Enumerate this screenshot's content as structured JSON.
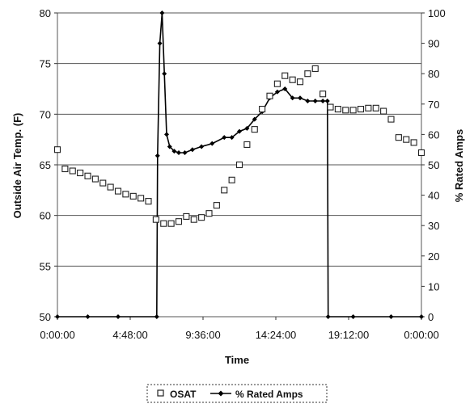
{
  "chart_data": {
    "type": "line",
    "xlabel": "Time",
    "ylabel_left": "Outside Air Temp. (F)",
    "ylabel_right": "% Rated Amps",
    "x_ticks": [
      "0:00:00",
      "4:48:00",
      "9:36:00",
      "14:24:00",
      "19:12:00",
      "0:00:00"
    ],
    "x_range_hours": [
      0,
      24
    ],
    "y_left_range": [
      50,
      80
    ],
    "y_left_ticks": [
      "50",
      "55",
      "60",
      "65",
      "70",
      "75",
      "80"
    ],
    "y_right_range": [
      0,
      100
    ],
    "y_right_ticks": [
      "0",
      "10",
      "20",
      "30",
      "40",
      "50",
      "60",
      "70",
      "80",
      "90",
      "100"
    ],
    "grid": "horizontal",
    "legend_position": "bottom",
    "series": [
      {
        "name": "OSAT",
        "axis": "left",
        "marker": "square-open",
        "color": "#222222",
        "x": [
          0,
          0.5,
          1,
          1.5,
          2,
          2.5,
          3,
          3.5,
          4,
          4.5,
          5,
          5.5,
          6,
          6.5,
          7,
          7.5,
          8,
          8.5,
          9,
          9.5,
          10,
          10.5,
          11,
          11.5,
          12,
          12.5,
          13,
          13.5,
          14,
          14.5,
          15,
          15.5,
          16,
          16.5,
          17,
          17.5,
          18,
          18.5,
          19,
          19.5,
          20,
          20.5,
          21,
          21.5,
          22,
          22.5,
          23,
          23.5,
          24
        ],
        "y": [
          66.5,
          64.6,
          64.4,
          64.2,
          63.9,
          63.6,
          63.2,
          62.8,
          62.4,
          62.1,
          61.9,
          61.7,
          61.4,
          59.6,
          59.2,
          59.2,
          59.4,
          59.9,
          59.6,
          59.8,
          60.2,
          61.0,
          62.5,
          63.5,
          65.0,
          67.0,
          68.5,
          70.5,
          71.8,
          73.0,
          73.8,
          73.4,
          73.2,
          74.0,
          74.5,
          72.0,
          70.7,
          70.5,
          70.4,
          70.4,
          70.5,
          70.6,
          70.6,
          70.3,
          69.5,
          67.7,
          67.5,
          67.2,
          66.2
        ]
      },
      {
        "name": "% Rated Amps",
        "axis": "right",
        "marker": "diamond-filled",
        "color": "#000000",
        "x": [
          0,
          2,
          4,
          6.55,
          6.6,
          6.75,
          6.9,
          7.05,
          7.2,
          7.4,
          7.7,
          8.0,
          8.4,
          8.9,
          9.5,
          10.2,
          11.0,
          11.5,
          12.0,
          12.5,
          13.0,
          13.5,
          14.0,
          14.5,
          15.0,
          15.5,
          16.0,
          16.5,
          17.0,
          17.5,
          17.8,
          17.85,
          19.5,
          22,
          24
        ],
        "y": [
          0,
          0,
          0,
          0,
          53,
          90,
          100,
          80,
          60,
          56,
          54.5,
          54,
          54,
          55,
          56,
          57,
          59,
          59,
          61,
          62,
          65,
          67.5,
          72,
          74,
          75,
          72,
          72,
          71,
          71,
          71,
          71,
          0,
          0,
          0,
          0
        ]
      }
    ]
  }
}
